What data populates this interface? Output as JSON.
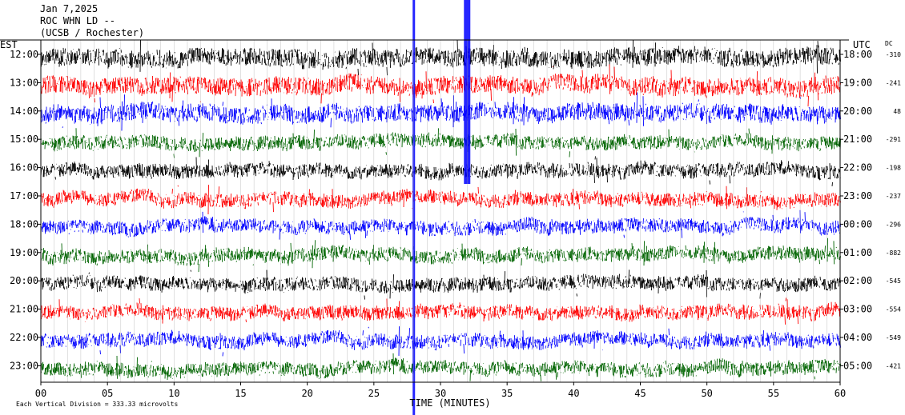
{
  "header": {
    "date": "Jan 7,2025",
    "station": "ROC WHN LD --",
    "source": "(UCSB / Rochester)"
  },
  "chart_data": {
    "type": "line",
    "left_axis_label": "EST",
    "right_axis_label": "UTC",
    "offset_column_label": "DC",
    "xlabel": "TIME (MINUTES)",
    "x_ticks": [
      "00",
      "05",
      "10",
      "15",
      "20",
      "25",
      "30",
      "35",
      "40",
      "45",
      "50",
      "55",
      "60"
    ],
    "xlim": [
      0,
      60
    ],
    "footer_note": "Each Vertical Division = 333.33 microvolts",
    "trace_colors": [
      "#000000",
      "#ff0000",
      "#0000ff",
      "#006400"
    ],
    "rows": [
      {
        "est": "12:00",
        "utc": "18:00",
        "dc": "-310"
      },
      {
        "est": "13:00",
        "utc": "19:00",
        "dc": "-241"
      },
      {
        "est": "14:00",
        "utc": "20:00",
        "dc": "48"
      },
      {
        "est": "15:00",
        "utc": "21:00",
        "dc": "-291"
      },
      {
        "est": "16:00",
        "utc": "22:00",
        "dc": "-198"
      },
      {
        "est": "17:00",
        "utc": "23:00",
        "dc": "-237"
      },
      {
        "est": "18:00",
        "utc": "00:00",
        "dc": "-296"
      },
      {
        "est": "19:00",
        "utc": "01:00",
        "dc": "-882"
      },
      {
        "est": "20:00",
        "utc": "02:00",
        "dc": "-545"
      },
      {
        "est": "21:00",
        "utc": "03:00",
        "dc": "-554"
      },
      {
        "est": "22:00",
        "utc": "04:00",
        "dc": "-549"
      },
      {
        "est": "23:00",
        "utc": "05:00",
        "dc": "-421"
      }
    ]
  }
}
